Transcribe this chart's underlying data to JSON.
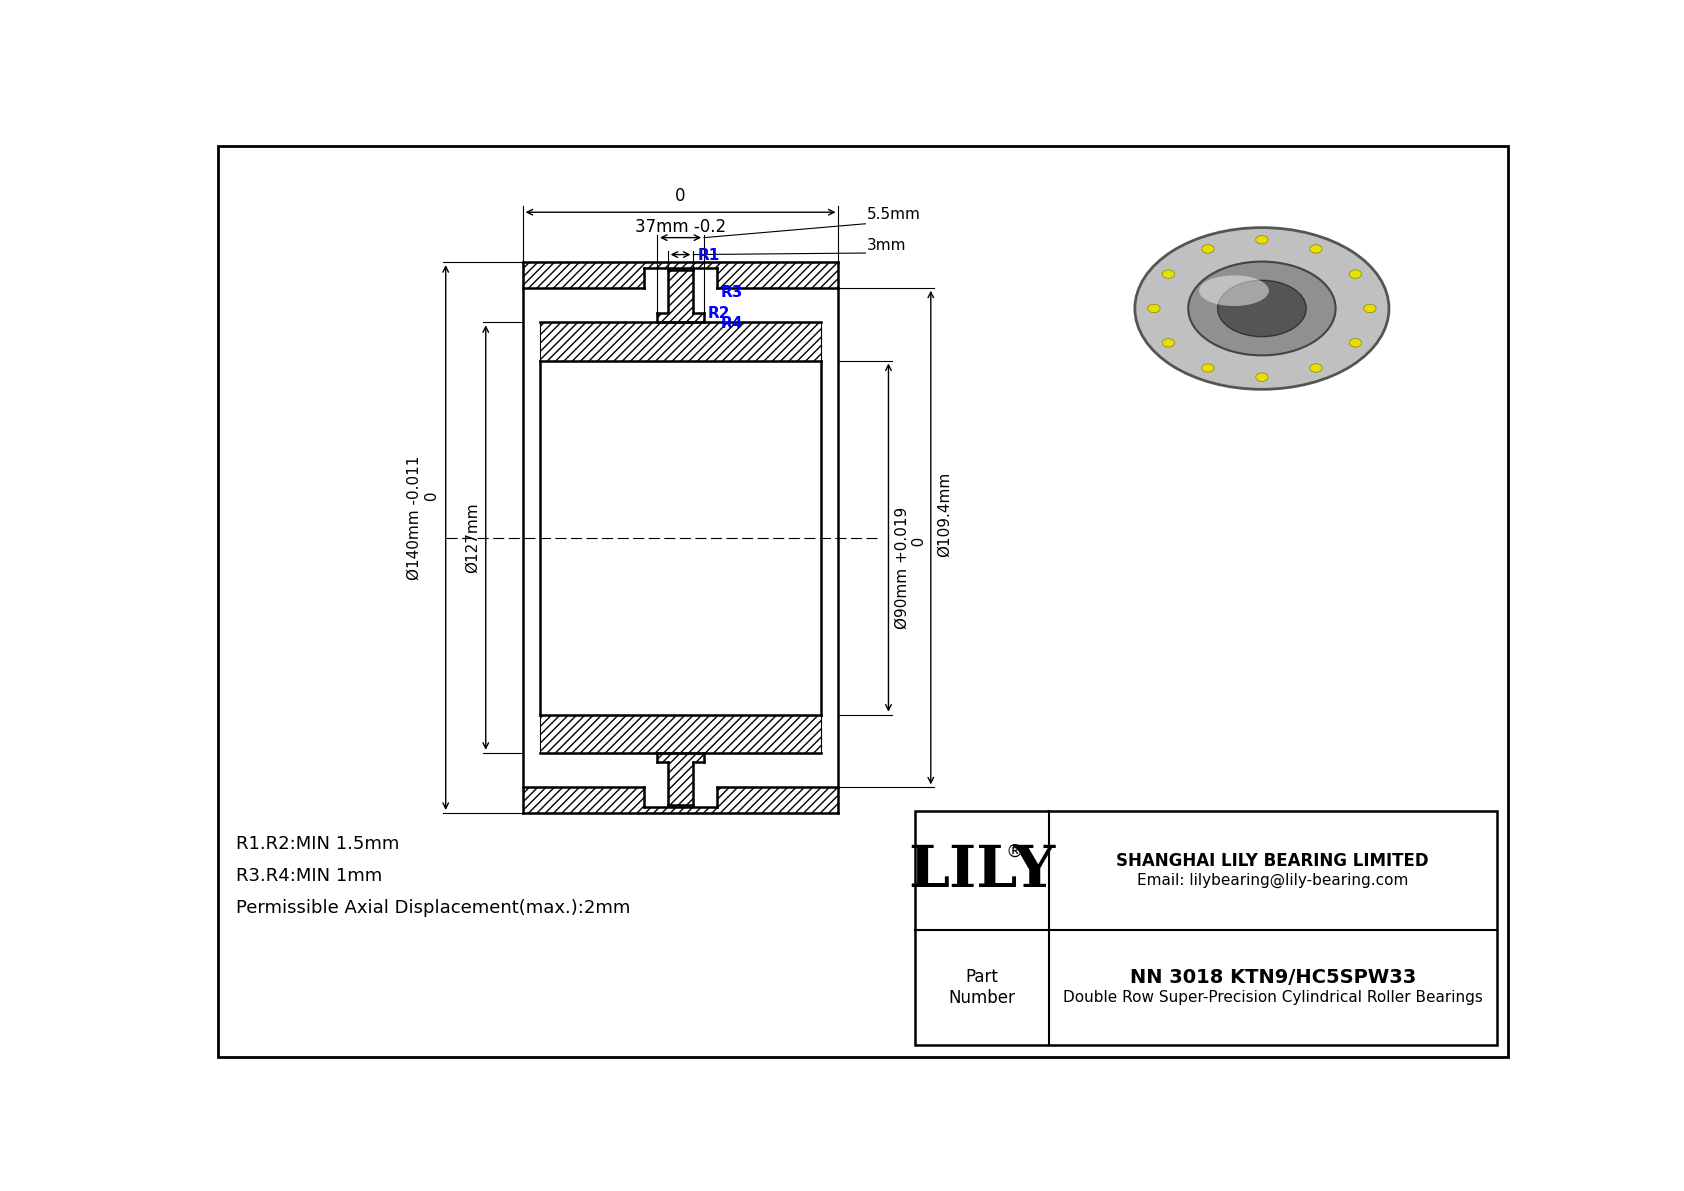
{
  "bg_color": "#ffffff",
  "line_color": "#000000",
  "blue_color": "#0000ff",
  "title": "NN 3018 KTN9/HC5SPW33",
  "subtitle": "Double Row Super-Precision Cylindrical Roller Bearings",
  "company": "SHANGHAI LILY BEARING LIMITED",
  "email": "Email: lilybearing@lily-bearing.com",
  "lily_brand": "LILY",
  "notes": [
    "R1.R2:MIN 1.5mm",
    "R3.R4:MIN 1mm",
    "Permissible Axial Displacement(max.):2mm"
  ],
  "radius_labels": [
    "R1",
    "R2",
    "R3",
    "R4"
  ],
  "dim_width_top": "0",
  "dim_width_bot": "37mm -0.2",
  "dim_5_5": "5.5mm",
  "dim_3": "3mm",
  "dim_od_outer": "Ø140mm -0.011\n         0",
  "dim_od_inner_ring": "Ø127mm",
  "dim_id_outer": "Ø109.4mm",
  "dim_bore": "Ø90mm +0.019\n           0"
}
